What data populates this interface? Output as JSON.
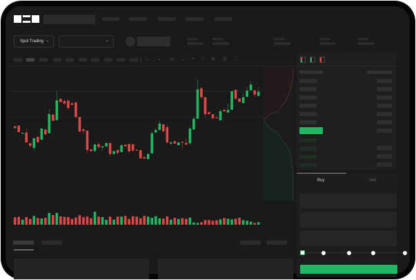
{
  "header": {
    "logo": "OKX",
    "market_type": "Spot Trading"
  },
  "orderbook": {
    "view_icons": [
      "orderbook-both-icon",
      "orderbook-bids-icon",
      "orderbook-asks-icon"
    ]
  },
  "trade": {
    "buy_tab": "Buy",
    "sell_tab": "Sell",
    "active_tab": "Buy",
    "slider_percent": 0
  },
  "toolbar": {
    "icons": [
      "candle-type-icon",
      "indicator-icon",
      "line-icon",
      "ruler-icon",
      "camera-icon",
      "settings-icon",
      "fullscreen-icon"
    ]
  },
  "colors": {
    "up": "#22b863",
    "down": "#e04848",
    "bg": "#1a1a1a",
    "accent": "#22b863"
  },
  "chart_data": {
    "type": "candlestick",
    "candles_ochl": [
      [
        67.3,
        64.7,
        68,
        64
      ],
      [
        68.3,
        59,
        69,
        58
      ],
      [
        57.3,
        58,
        58.5,
        57
      ],
      [
        58.3,
        44,
        64,
        43.5
      ],
      [
        42.7,
        39.3,
        43,
        37
      ],
      [
        36,
        50,
        50.5,
        32.3
      ],
      [
        52,
        44.3,
        52.5,
        43
      ],
      [
        48,
        64,
        65,
        47
      ],
      [
        62.7,
        56,
        63,
        54
      ],
      [
        57.3,
        85,
        92.3,
        57
      ],
      [
        84,
        75.3,
        86,
        75
      ],
      [
        76.3,
        105,
        117.7,
        76
      ],
      [
        107,
        102.3,
        108,
        102
      ],
      [
        104,
        100.3,
        106,
        98
      ],
      [
        104.3,
        93.7,
        107,
        91
      ],
      [
        100.7,
        98.3,
        101,
        98
      ],
      [
        101.7,
        80.7,
        103,
        80
      ],
      [
        80.7,
        59.7,
        81,
        59
      ],
      [
        63,
        60.7,
        63.5,
        56
      ],
      [
        61,
        33,
        61.5,
        28
      ],
      [
        33.7,
        31.3,
        35,
        31
      ],
      [
        31.7,
        41,
        42,
        30
      ],
      [
        41.3,
        37.3,
        44,
        35
      ],
      [
        36.7,
        38.3,
        39,
        33
      ],
      [
        38.3,
        43,
        45,
        38
      ],
      [
        43,
        27.3,
        43.5,
        24
      ],
      [
        27.3,
        31.3,
        32,
        26
      ],
      [
        33,
        29,
        33.5,
        26
      ],
      [
        30,
        40,
        41,
        29
      ],
      [
        40.7,
        38.3,
        41.5,
        38
      ],
      [
        41.7,
        31,
        42,
        29
      ],
      [
        41.3,
        32.3,
        42,
        30
      ],
      [
        33.3,
        32.3,
        34,
        32
      ],
      [
        32.7,
        21,
        33,
        20
      ],
      [
        22.7,
        20.7,
        23.5,
        20
      ],
      [
        20,
        27.3,
        28,
        19
      ],
      [
        28.3,
        57.3,
        60,
        27
      ],
      [
        58.3,
        62,
        65,
        58
      ],
      [
        62,
        71.3,
        76,
        61
      ],
      [
        70,
        60,
        71,
        59
      ],
      [
        66,
        44,
        70,
        42
      ],
      [
        42.3,
        44,
        46,
        40
      ],
      [
        46,
        42.3,
        46.5,
        42
      ],
      [
        40,
        44,
        44.5,
        40
      ],
      [
        45,
        44,
        45.5,
        35
      ],
      [
        43.3,
        41,
        50,
        40
      ],
      [
        42.7,
        64,
        67,
        41
      ],
      [
        62.7,
        78.3,
        81,
        62
      ],
      [
        78.3,
        120.7,
        135,
        78
      ],
      [
        122.3,
        109.3,
        124,
        107
      ],
      [
        109.3,
        85,
        110,
        81
      ],
      [
        87.7,
        85,
        89,
        84
      ],
      [
        84.7,
        79,
        85,
        77
      ],
      [
        80,
        79,
        83,
        79
      ],
      [
        76,
        89.3,
        92,
        75
      ],
      [
        91,
        89,
        94,
        88
      ],
      [
        87.3,
        91,
        100,
        87
      ],
      [
        91.3,
        118,
        119,
        91
      ],
      [
        120,
        107.3,
        121,
        106
      ],
      [
        107.7,
        102.7,
        108,
        102
      ],
      [
        101,
        109.3,
        115,
        100
      ],
      [
        110,
        119,
        124,
        109
      ],
      [
        119.3,
        127.7,
        132,
        119
      ],
      [
        119.3,
        113.3,
        120,
        110
      ],
      [
        111.3,
        117.3,
        124,
        111
      ]
    ],
    "volumes": [
      32,
      34,
      22,
      33,
      25,
      38,
      29,
      27,
      30,
      51,
      42,
      51,
      36,
      34,
      33,
      25,
      31,
      41,
      32,
      35,
      28,
      56,
      35,
      33,
      21,
      35,
      22,
      35,
      35,
      38,
      25,
      37,
      35,
      28,
      38,
      35,
      30,
      37,
      28,
      26,
      36,
      22,
      30,
      25,
      28,
      25,
      31,
      10,
      8,
      11,
      20,
      20,
      17,
      19,
      23,
      29,
      26,
      23,
      26,
      30,
      20,
      17,
      13,
      8,
      11
    ]
  }
}
